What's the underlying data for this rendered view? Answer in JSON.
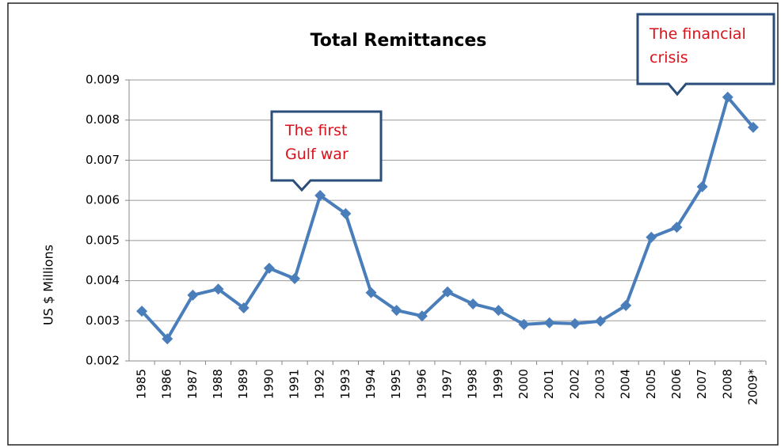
{
  "chart_data": {
    "type": "line",
    "title": "Total Remittances",
    "y_label": "US $ Millions",
    "categories": [
      "1985",
      "1986",
      "1987",
      "1988",
      "1989",
      "1990",
      "1991",
      "1992",
      "1993",
      "1994",
      "1995",
      "1996",
      "1997",
      "1998",
      "1999",
      "2000",
      "2001",
      "2002",
      "2003",
      "2004",
      "2005",
      "2006",
      "2007",
      "2008",
      "2009*"
    ],
    "series": [
      {
        "name": "Total Remittances",
        "color": "#4a7ebb",
        "values": [
          0.00324,
          0.00255,
          0.00364,
          0.00379,
          0.00332,
          0.00431,
          0.00405,
          0.00612,
          0.00567,
          0.0037,
          0.00326,
          0.00312,
          0.00372,
          0.00342,
          0.00326,
          0.00291,
          0.00295,
          0.00293,
          0.00299,
          0.00338,
          0.00508,
          0.00533,
          0.00634,
          0.00857,
          0.00782
        ]
      }
    ],
    "ylim": [
      0.002,
      0.009
    ],
    "yticks": [
      0.002,
      0.003,
      0.004,
      0.005,
      0.006,
      0.007,
      0.008,
      0.009
    ],
    "grid": true,
    "annotations": [
      {
        "text": "The first Gulf war"
      },
      {
        "text": "The financial crisis"
      }
    ]
  }
}
